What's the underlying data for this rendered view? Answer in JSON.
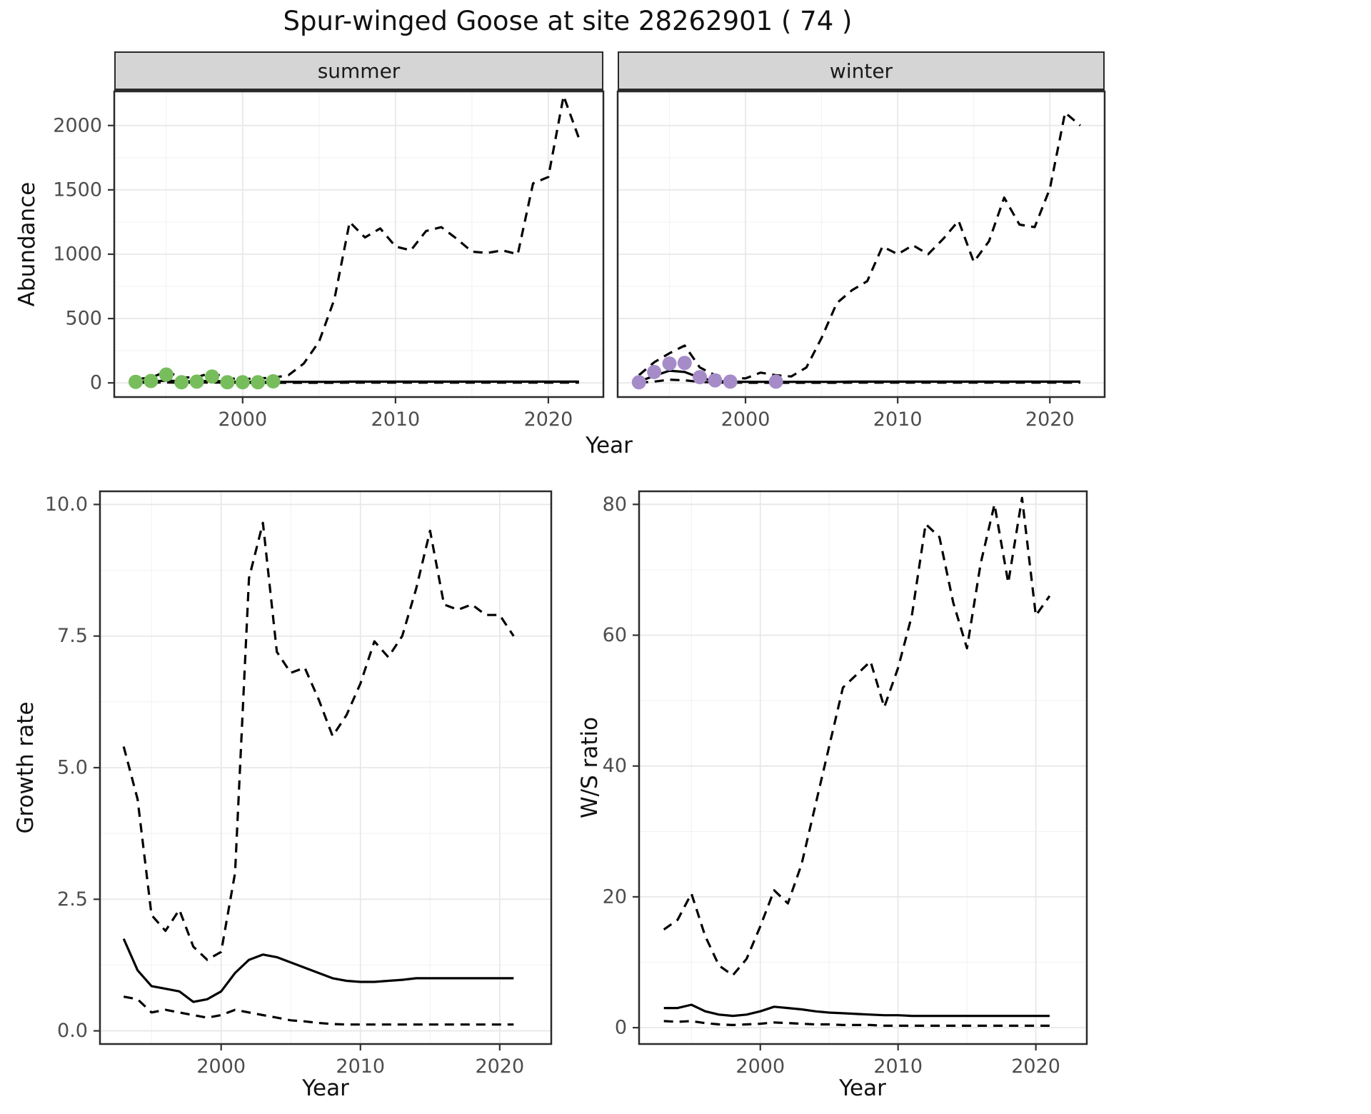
{
  "title": "Spur-winged Goose at site 28262901 ( 74 )",
  "colors": {
    "line": "#000000",
    "grid_major": "#e8e8e8",
    "grid_minor": "#f3f3f3",
    "tick_text": "#4d4d4d",
    "panel_border": "#2a2a2a",
    "strip_bg": "#d5d5d5",
    "summer_points": "#77bd5c",
    "winter_points": "#a58cc8"
  },
  "chart_data": [
    {
      "type": "line",
      "facet": "summer",
      "xlabel": "Year",
      "ylabel": "Abundance",
      "xlim": [
        1991.6,
        2023.6
      ],
      "ylim": [
        -110,
        2265
      ],
      "xticks": {
        "values": [
          2000,
          2010,
          2020
        ],
        "labels": [
          "2000",
          "2010",
          "2020"
        ]
      },
      "yticks": {
        "values": [
          0,
          500,
          1000,
          1500,
          2000
        ],
        "labels": [
          "0",
          "500",
          "1000",
          "1500",
          "2000"
        ]
      },
      "x": [
        1993,
        1994,
        1995,
        1996,
        1997,
        1998,
        1999,
        2000,
        2001,
        2002,
        2003,
        2004,
        2005,
        2006,
        2007,
        2008,
        2009,
        2010,
        2011,
        2012,
        2013,
        2014,
        2015,
        2016,
        2017,
        2018,
        2019,
        2020,
        2021,
        2022
      ],
      "series": [
        {
          "name": "upper_ci",
          "style": "dashed",
          "values": [
            30,
            40,
            90,
            40,
            45,
            80,
            35,
            30,
            35,
            40,
            60,
            150,
            320,
            650,
            1250,
            1130,
            1200,
            1060,
            1030,
            1180,
            1210,
            1120,
            1020,
            1010,
            1030,
            1000,
            1550,
            1600,
            2230,
            1900
          ]
        },
        {
          "name": "fit",
          "style": "solid",
          "values": [
            12,
            10,
            18,
            12,
            12,
            16,
            10,
            8,
            8,
            8,
            8,
            8,
            8,
            8,
            10,
            10,
            10,
            10,
            10,
            10,
            10,
            10,
            10,
            10,
            10,
            10,
            10,
            10,
            10,
            10
          ]
        },
        {
          "name": "lower_ci",
          "style": "dashed",
          "values": [
            2,
            2,
            3,
            2,
            2,
            3,
            2,
            1,
            1,
            1,
            1,
            1,
            1,
            1,
            2,
            2,
            2,
            2,
            2,
            2,
            2,
            2,
            2,
            2,
            2,
            2,
            2,
            2,
            2,
            2
          ]
        }
      ],
      "points": {
        "name": "observed_counts_summer",
        "color": "#77bd5c",
        "x": [
          1993,
          1994,
          1995,
          1996,
          1997,
          1998,
          1999,
          2000,
          2001,
          2002
        ],
        "y": [
          8,
          15,
          65,
          5,
          10,
          50,
          5,
          5,
          5,
          12
        ]
      }
    },
    {
      "type": "line",
      "facet": "winter",
      "xlabel": "Year",
      "ylabel": "Abundance",
      "xlim": [
        1991.6,
        2023.6
      ],
      "ylim": [
        -110,
        2265
      ],
      "xticks": {
        "values": [
          2000,
          2010,
          2020
        ],
        "labels": [
          "2000",
          "2010",
          "2020"
        ]
      },
      "yticks": {
        "values": [
          0,
          500,
          1000,
          1500,
          2000
        ],
        "labels": [
          "0",
          "500",
          "1000",
          "1500",
          "2000"
        ]
      },
      "x": [
        1993,
        1994,
        1995,
        1996,
        1997,
        1998,
        1999,
        2000,
        2001,
        2002,
        2003,
        2004,
        2005,
        2006,
        2007,
        2008,
        2009,
        2010,
        2011,
        2012,
        2013,
        2014,
        2015,
        2016,
        2017,
        2018,
        2019,
        2020,
        2021,
        2022
      ],
      "series": [
        {
          "name": "upper_ci",
          "style": "dashed",
          "values": [
            60,
            160,
            230,
            290,
            120,
            60,
            40,
            35,
            80,
            60,
            50,
            120,
            350,
            620,
            720,
            790,
            1060,
            1000,
            1070,
            1000,
            1120,
            1260,
            940,
            1100,
            1440,
            1230,
            1210,
            1510,
            2100,
            2000
          ]
        },
        {
          "name": "fit",
          "style": "solid",
          "values": [
            10,
            55,
            95,
            85,
            40,
            15,
            10,
            8,
            8,
            8,
            8,
            8,
            8,
            8,
            10,
            10,
            10,
            10,
            10,
            10,
            10,
            10,
            10,
            10,
            10,
            10,
            10,
            10,
            10,
            10
          ]
        },
        {
          "name": "lower_ci",
          "style": "dashed",
          "values": [
            2,
            10,
            25,
            20,
            8,
            3,
            2,
            1,
            1,
            1,
            1,
            1,
            1,
            1,
            2,
            2,
            2,
            2,
            2,
            2,
            2,
            2,
            2,
            2,
            2,
            2,
            2,
            2,
            2,
            2
          ]
        }
      ],
      "points": {
        "name": "observed_counts_winter",
        "color": "#a58cc8",
        "x": [
          1993,
          1994,
          1995,
          1996,
          1997,
          1998,
          1999,
          2002
        ],
        "y": [
          5,
          85,
          150,
          155,
          45,
          20,
          10,
          10
        ]
      }
    },
    {
      "type": "line",
      "facet": null,
      "xlabel": "Year",
      "ylabel": "Growth rate",
      "xlim": [
        1991.3,
        2023.7
      ],
      "ylim": [
        -0.25,
        10.25
      ],
      "xticks": {
        "values": [
          2000,
          2010,
          2020
        ],
        "labels": [
          "2000",
          "2010",
          "2020"
        ]
      },
      "yticks": {
        "values": [
          0,
          2.5,
          5,
          7.5,
          10
        ],
        "labels": [
          "0.0",
          "2.5",
          "5.0",
          "7.5",
          "10.0"
        ]
      },
      "x": [
        1993,
        1994,
        1995,
        1996,
        1997,
        1998,
        1999,
        2000,
        2001,
        2002,
        2003,
        2004,
        2005,
        2006,
        2007,
        2008,
        2009,
        2010,
        2011,
        2012,
        2013,
        2014,
        2015,
        2016,
        2017,
        2018,
        2019,
        2020,
        2021
      ],
      "series": [
        {
          "name": "upper_ci",
          "style": "dashed",
          "values": [
            5.4,
            4.4,
            2.2,
            1.9,
            2.3,
            1.6,
            1.35,
            1.5,
            3.0,
            8.6,
            9.65,
            7.2,
            6.8,
            6.9,
            6.3,
            5.6,
            6.0,
            6.6,
            7.4,
            7.1,
            7.5,
            8.4,
            9.5,
            8.1,
            8.0,
            8.1,
            7.9,
            7.9,
            7.5
          ]
        },
        {
          "name": "fit",
          "style": "solid",
          "values": [
            1.75,
            1.15,
            0.85,
            0.8,
            0.75,
            0.55,
            0.6,
            0.75,
            1.1,
            1.35,
            1.45,
            1.4,
            1.3,
            1.2,
            1.1,
            1.0,
            0.95,
            0.93,
            0.93,
            0.95,
            0.97,
            1.0,
            1.0,
            1.0,
            1.0,
            1.0,
            1.0,
            1.0,
            1.0
          ]
        },
        {
          "name": "lower_ci",
          "style": "dashed",
          "values": [
            0.65,
            0.6,
            0.35,
            0.4,
            0.35,
            0.3,
            0.25,
            0.3,
            0.4,
            0.35,
            0.3,
            0.25,
            0.2,
            0.18,
            0.15,
            0.13,
            0.12,
            0.12,
            0.12,
            0.12,
            0.12,
            0.12,
            0.12,
            0.12,
            0.12,
            0.12,
            0.12,
            0.12,
            0.12
          ]
        }
      ],
      "points": null
    },
    {
      "type": "line",
      "facet": null,
      "xlabel": "Year",
      "ylabel": "W/S ratio",
      "xlim": [
        1991.2,
        2023.7
      ],
      "ylim": [
        -2.5,
        82
      ],
      "xticks": {
        "values": [
          2000,
          2010,
          2020
        ],
        "labels": [
          "2000",
          "2010",
          "2020"
        ]
      },
      "yticks": {
        "values": [
          0,
          20,
          40,
          60,
          80
        ],
        "labels": [
          "0",
          "20",
          "40",
          "60",
          "80"
        ]
      },
      "x": [
        1993,
        1994,
        1995,
        1996,
        1997,
        1998,
        1999,
        2000,
        2001,
        2002,
        2003,
        2004,
        2005,
        2006,
        2007,
        2008,
        2009,
        2010,
        2011,
        2012,
        2013,
        2014,
        2015,
        2016,
        2017,
        2018,
        2019,
        2020,
        2021
      ],
      "series": [
        {
          "name": "upper_ci",
          "style": "dashed",
          "values": [
            15,
            16.5,
            20.5,
            14,
            9.5,
            8,
            10.5,
            15.5,
            21,
            19,
            25,
            34,
            43,
            52,
            54,
            56,
            49,
            55,
            63,
            77,
            75,
            65,
            58,
            71,
            80,
            68,
            81,
            63,
            66
          ]
        },
        {
          "name": "fit",
          "style": "solid",
          "values": [
            3,
            3,
            3.5,
            2.5,
            2,
            1.8,
            2,
            2.5,
            3.2,
            3,
            2.8,
            2.5,
            2.3,
            2.2,
            2.1,
            2,
            1.9,
            1.9,
            1.8,
            1.8,
            1.8,
            1.8,
            1.8,
            1.8,
            1.8,
            1.8,
            1.8,
            1.8,
            1.8
          ]
        },
        {
          "name": "lower_ci",
          "style": "dashed",
          "values": [
            1,
            0.9,
            1,
            0.7,
            0.5,
            0.4,
            0.5,
            0.6,
            0.8,
            0.7,
            0.6,
            0.5,
            0.5,
            0.4,
            0.4,
            0.4,
            0.3,
            0.3,
            0.3,
            0.3,
            0.3,
            0.3,
            0.3,
            0.3,
            0.3,
            0.3,
            0.3,
            0.3,
            0.3
          ]
        }
      ],
      "points": null
    }
  ]
}
